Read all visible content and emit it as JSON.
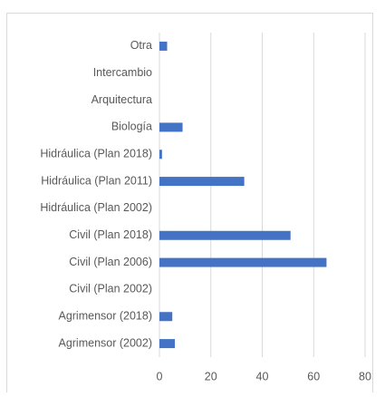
{
  "chart_data": {
    "type": "bar",
    "orientation": "horizontal",
    "categories": [
      "Otra",
      "Intercambio",
      "Arquitectura",
      "Biología",
      "Hidráulica (Plan 2018)",
      "Hidráulica (Plan 2011)",
      "Hidráulica (Plan 2002)",
      "Civil (Plan 2018)",
      "Civil (Plan 2006)",
      "Civil (Plan 2002)",
      "Agrimensor (2018)",
      "Agrimensor (2002)"
    ],
    "values": [
      3,
      0,
      0,
      9,
      1,
      33,
      0,
      51,
      65,
      0,
      5,
      6
    ],
    "color": "#4472c4",
    "xlim": [
      0,
      80
    ],
    "xticks": [
      0,
      20,
      40,
      60,
      80
    ],
    "grid": true
  }
}
